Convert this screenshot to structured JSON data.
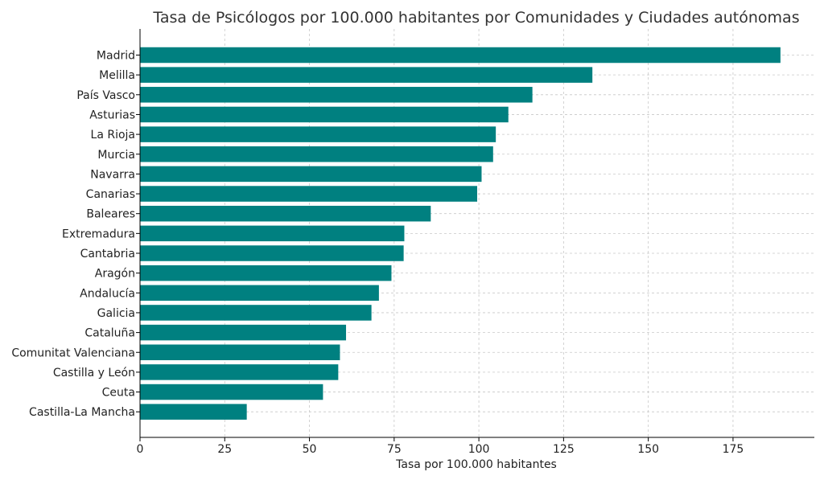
{
  "chart_data": {
    "type": "bar",
    "orientation": "horizontal",
    "title": "Tasa de Psicólogos por 100.000 habitantes por Comunidades y Ciudades autónomas",
    "xlabel": "Tasa por 100.000 habitantes",
    "ylabel": "",
    "xlim": [
      0,
      199
    ],
    "xticks": [
      0,
      25,
      50,
      75,
      100,
      125,
      150,
      175
    ],
    "grid": true,
    "bar_color": "#008080",
    "categories": [
      "Madrid",
      "Melilla",
      "País Vasco",
      "Asturias",
      "La Rioja",
      "Murcia",
      "Navarra",
      "Canarias",
      "Baleares",
      "Extremadura",
      "Cantabria",
      "Aragón",
      "Andalucía",
      "Galicia",
      "Cataluña",
      "Comunitat Valenciana",
      "Castilla y León",
      "Ceuta",
      "Castilla-La Mancha"
    ],
    "values": [
      189,
      133.5,
      115.8,
      108.7,
      105,
      104.2,
      100.8,
      99.5,
      85.8,
      78,
      77.8,
      74.2,
      70.5,
      68.3,
      60.8,
      59,
      58.5,
      54,
      31.5
    ]
  }
}
